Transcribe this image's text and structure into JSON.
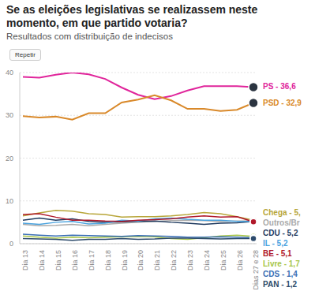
{
  "chart_data": {
    "type": "line",
    "title": "Se as eleições legislativas se realizassem neste momento, em que partido votaria?",
    "subtitle": "Resultados com distribuição de indecisos",
    "button": "Repetir",
    "categories": [
      "Dia 13",
      "Dia 14",
      "Dia 15",
      "Dia 16",
      "Dia 17",
      "Dia 18",
      "Dia 19",
      "Dia 20",
      "Dia 21",
      "Dia 22",
      "Dia 23",
      "Dia 24",
      "Dia 25",
      "Dia 26",
      "Dias 27 e 28"
    ],
    "ylim": [
      0,
      40
    ],
    "yticks": [
      0,
      10,
      20,
      30,
      40
    ],
    "grid": true,
    "series": [
      {
        "name": "PS",
        "label": "PS - 36,6",
        "color": "#e0259b",
        "values": [
          39,
          38.8,
          39.5,
          40,
          39.6,
          38.5,
          36.5,
          34.8,
          33.8,
          34.5,
          35.8,
          36.8,
          36.8,
          36.8,
          36.6
        ]
      },
      {
        "name": "PSD",
        "label": "PSD - 32,9",
        "color": "#d9892a",
        "values": [
          29.8,
          29.5,
          29.7,
          29,
          30.5,
          30.5,
          33,
          33.7,
          34.7,
          33.5,
          31.5,
          31.5,
          31,
          31.3,
          32.9
        ]
      },
      {
        "name": "Chega",
        "label": "Chega - 5,",
        "color": "#b8a63a",
        "values": [
          6.5,
          7.2,
          7.8,
          7.6,
          7,
          6.8,
          6.2,
          6.3,
          6.3,
          6.5,
          6.8,
          7.3,
          7,
          6.3,
          5.5
        ]
      },
      {
        "name": "Outros/Br",
        "label": "Outros/Br",
        "color": "#aaaaaa",
        "values": [
          4.5,
          4.2,
          4.3,
          4.5,
          4.2,
          4.5,
          4.8,
          5,
          5.2,
          5.4,
          5.5,
          5.4,
          5.2,
          5.3,
          5.3
        ]
      },
      {
        "name": "CDU",
        "label": "CDU - 5,2",
        "color": "#1f3a5f",
        "values": [
          5.5,
          6,
          5.5,
          5.8,
          5.2,
          5,
          5.1,
          5.2,
          5.3,
          5,
          4.8,
          4.5,
          4.8,
          4.9,
          5.2
        ]
      },
      {
        "name": "IL",
        "label": "IL - 5,2",
        "color": "#4aa3df",
        "values": [
          4.8,
          4.5,
          5,
          5.2,
          4.6,
          4.8,
          5.5,
          5.3,
          5.8,
          6,
          5.7,
          5.5,
          5.5,
          5.2,
          5.2
        ]
      },
      {
        "name": "BE",
        "label": "BE - 5,1",
        "color": "#b0182a",
        "values": [
          6.8,
          7,
          6.2,
          5.5,
          5.5,
          5.3,
          5.2,
          5.5,
          5.6,
          5.8,
          6.2,
          6.5,
          6.2,
          6.3,
          5.1
        ]
      },
      {
        "name": "Livre",
        "label": "Livre - 1,7",
        "color": "#a8c64a",
        "values": [
          1.8,
          1.5,
          1.3,
          1.5,
          1.4,
          1.5,
          1.6,
          1.7,
          1.6,
          1.2,
          1,
          1.4,
          1.8,
          2,
          1.7
        ]
      },
      {
        "name": "CDS",
        "label": "CDS - 1,4",
        "color": "#3a6fb5",
        "values": [
          2.2,
          2,
          1.8,
          2,
          1.9,
          1.8,
          1.7,
          1.9,
          1.8,
          1.7,
          1.5,
          1.5,
          1.6,
          1.5,
          1.4
        ]
      },
      {
        "name": "PAN",
        "label": "PAN - 1,2",
        "color": "#2c4a6b",
        "values": [
          1.2,
          1.1,
          1,
          0.8,
          1,
          1,
          1.2,
          1,
          1.1,
          1.3,
          1.3,
          1.2,
          1.1,
          1.2,
          1.2
        ]
      }
    ]
  }
}
